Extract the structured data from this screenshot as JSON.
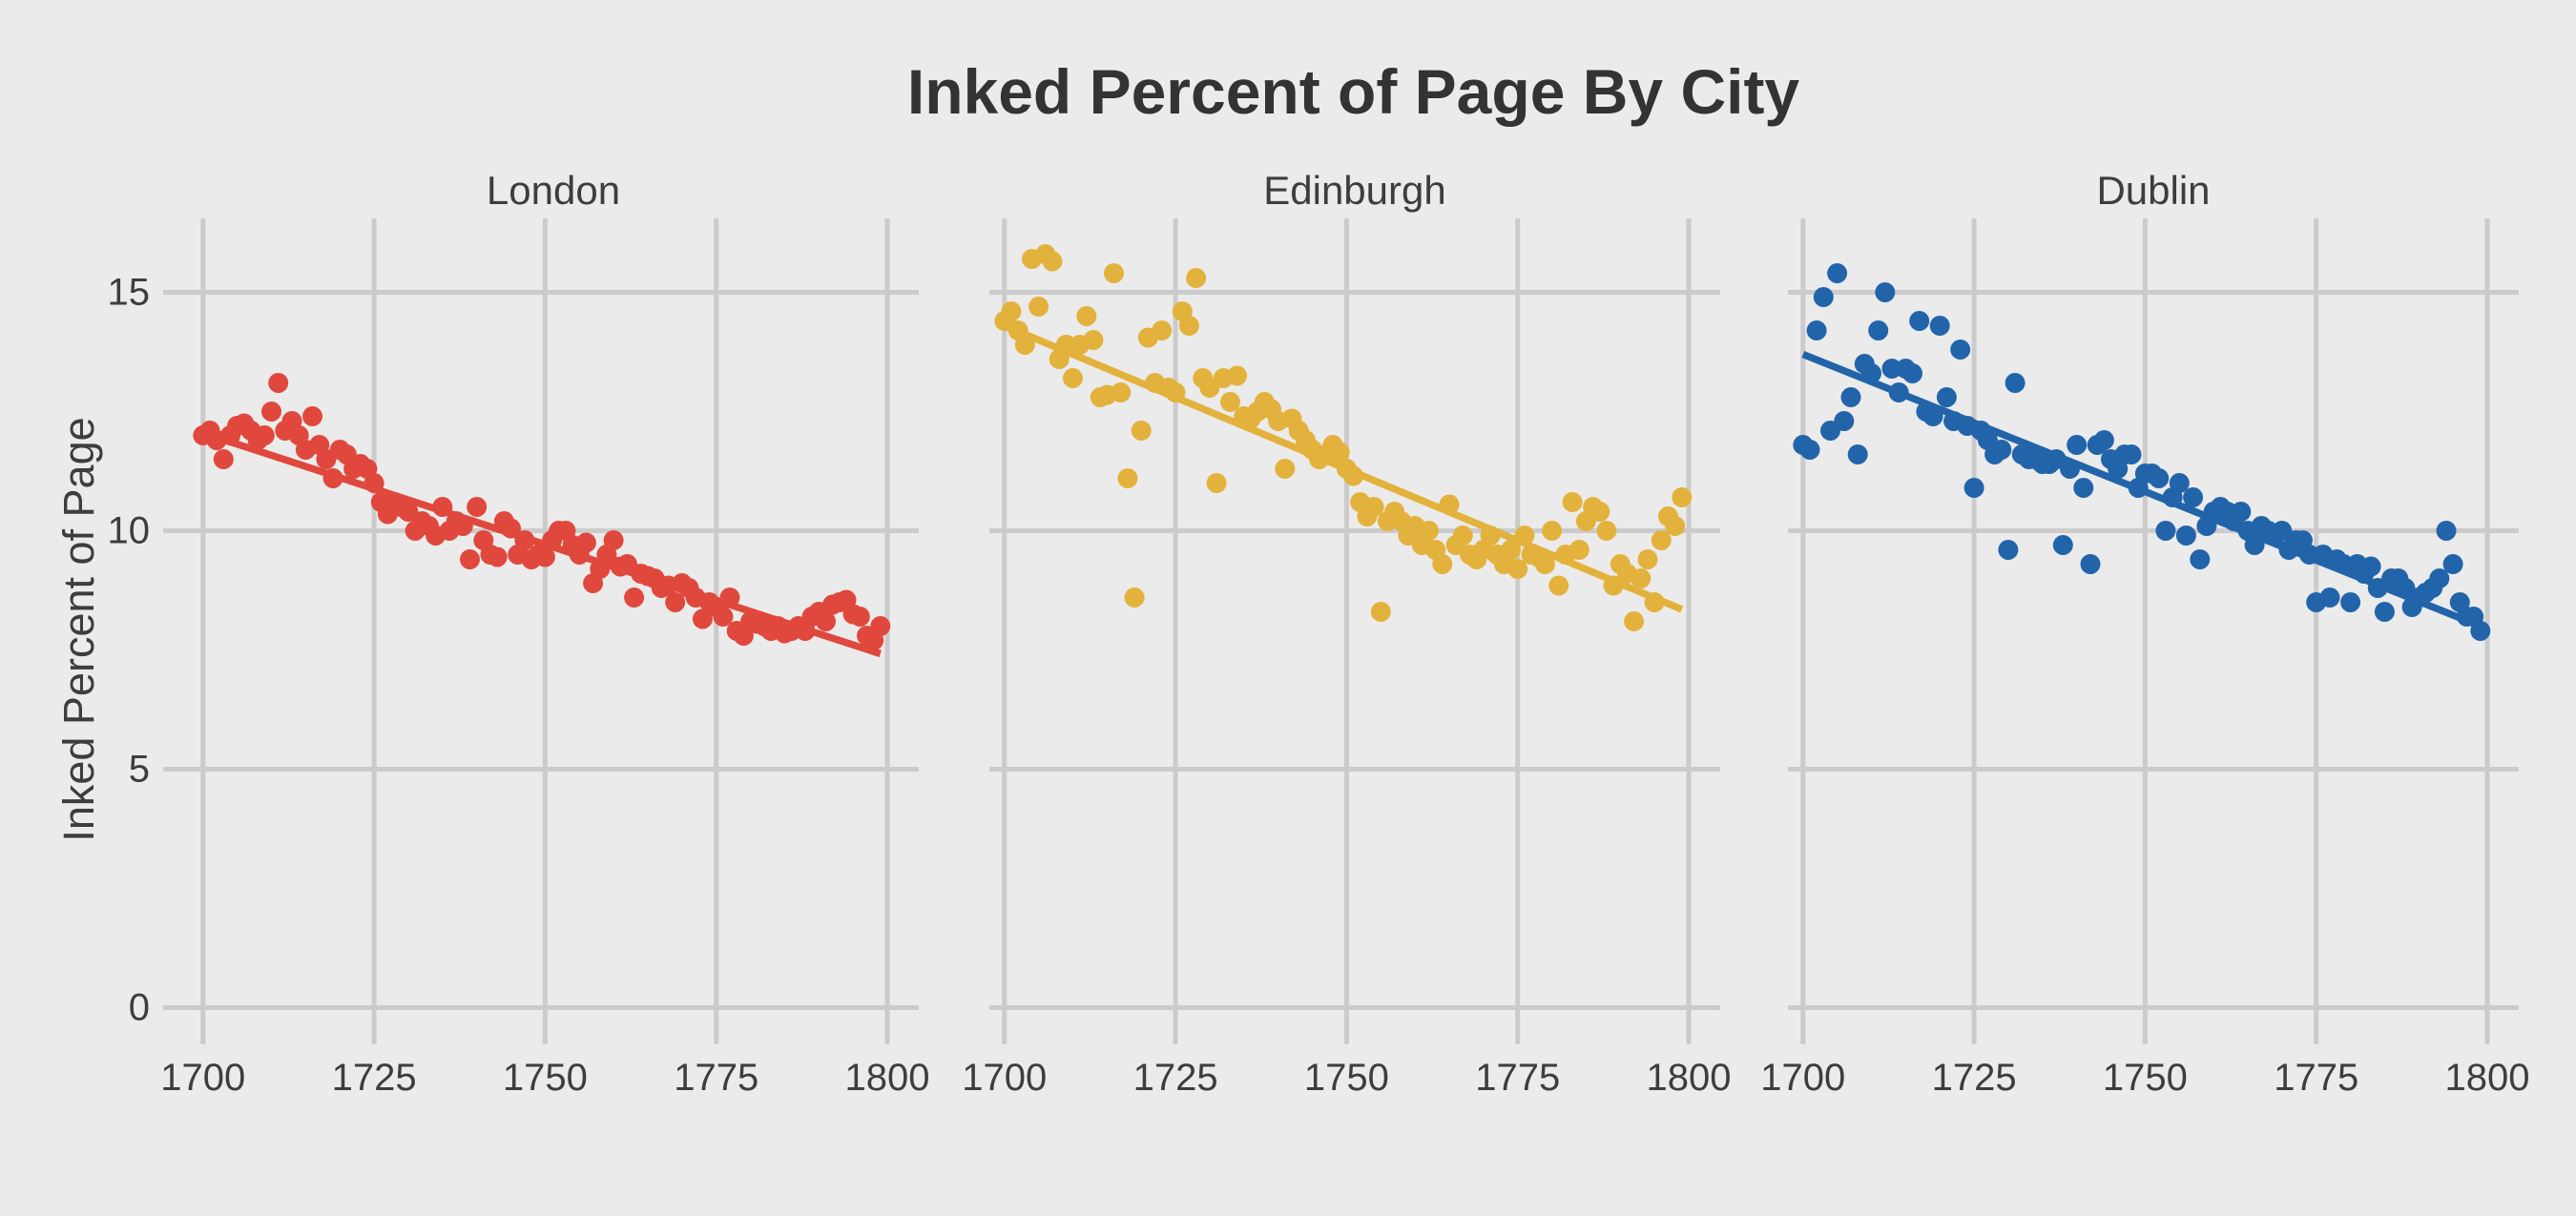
{
  "title": "Inked Percent of Page By City",
  "colors": {
    "background": "#EBEBEB",
    "gridline": "#CBCBCB",
    "title_text": "#333333",
    "axis_text": "#3D3D3D",
    "london": "#E0483D",
    "edinburgh": "#E3B23C",
    "dublin": "#2264AA"
  },
  "chart_data": {
    "type": "scatter",
    "title": "Inked Percent of Page By City",
    "xlabel": "",
    "ylabel": "Inked Percent of Page",
    "x_ticks": [
      1700,
      1725,
      1750,
      1775,
      1800
    ],
    "y_ticks": [
      0,
      5,
      10,
      15
    ],
    "xlim": [
      1697.8,
      1804.6
    ],
    "ylim": [
      -0.25,
      16.55
    ],
    "grid": true,
    "legend": "none",
    "facets": [
      {
        "label": "London",
        "color": "#E0483D",
        "trend": {
          "x1": 1700,
          "y1": 12.05,
          "x2": 1799,
          "y2": 7.42
        },
        "points": [
          [
            1700,
            12.0
          ],
          [
            1701,
            12.1
          ],
          [
            1702,
            11.9
          ],
          [
            1703,
            11.5
          ],
          [
            1704,
            12.0
          ],
          [
            1705,
            12.2
          ],
          [
            1706,
            12.25
          ],
          [
            1707,
            12.1
          ],
          [
            1708,
            11.9
          ],
          [
            1709,
            12.0
          ],
          [
            1710,
            12.5
          ],
          [
            1711,
            13.1
          ],
          [
            1712,
            12.1
          ],
          [
            1713,
            12.3
          ],
          [
            1714,
            12.0
          ],
          [
            1715,
            11.7
          ],
          [
            1716,
            12.4
          ],
          [
            1717,
            11.8
          ],
          [
            1718,
            11.5
          ],
          [
            1719,
            11.1
          ],
          [
            1720,
            11.7
          ],
          [
            1721,
            11.6
          ],
          [
            1722,
            11.3
          ],
          [
            1723,
            11.4
          ],
          [
            1724,
            11.3
          ],
          [
            1725,
            11.0
          ],
          [
            1726,
            10.6
          ],
          [
            1727,
            10.35
          ],
          [
            1728,
            10.6
          ],
          [
            1729,
            10.5
          ],
          [
            1730,
            10.4
          ],
          [
            1731,
            10.0
          ],
          [
            1732,
            10.2
          ],
          [
            1733,
            10.1
          ],
          [
            1734,
            9.9
          ],
          [
            1735,
            10.5
          ],
          [
            1736,
            10.0
          ],
          [
            1737,
            10.2
          ],
          [
            1738,
            10.1
          ],
          [
            1739,
            9.4
          ],
          [
            1740,
            10.5
          ],
          [
            1741,
            9.8
          ],
          [
            1742,
            9.5
          ],
          [
            1743,
            9.45
          ],
          [
            1744,
            10.2
          ],
          [
            1745,
            10.05
          ],
          [
            1746,
            9.5
          ],
          [
            1747,
            9.8
          ],
          [
            1748,
            9.4
          ],
          [
            1749,
            9.5
          ],
          [
            1750,
            9.45
          ],
          [
            1751,
            9.8
          ],
          [
            1752,
            10.0
          ],
          [
            1753,
            10.0
          ],
          [
            1754,
            9.7
          ],
          [
            1755,
            9.5
          ],
          [
            1756,
            9.75
          ],
          [
            1757,
            8.9
          ],
          [
            1758,
            9.2
          ],
          [
            1759,
            9.5
          ],
          [
            1760,
            9.8
          ],
          [
            1761,
            9.25
          ],
          [
            1762,
            9.3
          ],
          [
            1763,
            8.6
          ],
          [
            1764,
            9.1
          ],
          [
            1765,
            9.05
          ],
          [
            1766,
            9.0
          ],
          [
            1767,
            8.8
          ],
          [
            1768,
            8.85
          ],
          [
            1769,
            8.5
          ],
          [
            1770,
            8.9
          ],
          [
            1771,
            8.8
          ],
          [
            1772,
            8.6
          ],
          [
            1773,
            8.15
          ],
          [
            1774,
            8.5
          ],
          [
            1775,
            8.4
          ],
          [
            1776,
            8.2
          ],
          [
            1777,
            8.6
          ],
          [
            1778,
            7.9
          ],
          [
            1779,
            7.8
          ],
          [
            1780,
            8.1
          ],
          [
            1781,
            8.05
          ],
          [
            1782,
            8.0
          ],
          [
            1783,
            7.9
          ],
          [
            1784,
            8.0
          ],
          [
            1785,
            7.85
          ],
          [
            1786,
            7.9
          ],
          [
            1787,
            8.0
          ],
          [
            1788,
            7.9
          ],
          [
            1789,
            8.2
          ],
          [
            1790,
            8.3
          ],
          [
            1791,
            8.1
          ],
          [
            1792,
            8.45
          ],
          [
            1793,
            8.5
          ],
          [
            1794,
            8.55
          ],
          [
            1795,
            8.25
          ],
          [
            1796,
            8.2
          ],
          [
            1797,
            7.8
          ],
          [
            1798,
            7.7
          ],
          [
            1799,
            8.0
          ]
        ]
      },
      {
        "label": "Edinburgh",
        "color": "#E3B23C",
        "trend": {
          "x1": 1700,
          "y1": 14.3,
          "x2": 1799,
          "y2": 8.35
        },
        "points": [
          [
            1700,
            14.4
          ],
          [
            1701,
            14.6
          ],
          [
            1702,
            14.2
          ],
          [
            1703,
            13.9
          ],
          [
            1704,
            15.7
          ],
          [
            1705,
            14.7
          ],
          [
            1706,
            15.8
          ],
          [
            1707,
            15.65
          ],
          [
            1708,
            13.6
          ],
          [
            1709,
            13.9
          ],
          [
            1710,
            13.2
          ],
          [
            1711,
            13.9
          ],
          [
            1712,
            14.5
          ],
          [
            1713,
            14.0
          ],
          [
            1714,
            12.8
          ],
          [
            1715,
            12.85
          ],
          [
            1716,
            15.4
          ],
          [
            1717,
            12.9
          ],
          [
            1718,
            11.1
          ],
          [
            1719,
            8.6
          ],
          [
            1720,
            12.1
          ],
          [
            1721,
            14.05
          ],
          [
            1722,
            13.1
          ],
          [
            1723,
            14.2
          ],
          [
            1724,
            13.0
          ],
          [
            1725,
            12.9
          ],
          [
            1726,
            14.6
          ],
          [
            1727,
            14.3
          ],
          [
            1728,
            15.3
          ],
          [
            1729,
            13.2
          ],
          [
            1730,
            13.0
          ],
          [
            1731,
            11.0
          ],
          [
            1732,
            13.2
          ],
          [
            1733,
            12.7
          ],
          [
            1734,
            13.25
          ],
          [
            1735,
            12.4
          ],
          [
            1736,
            12.35
          ],
          [
            1737,
            12.5
          ],
          [
            1738,
            12.7
          ],
          [
            1739,
            12.55
          ],
          [
            1740,
            12.3
          ],
          [
            1741,
            11.3
          ],
          [
            1742,
            12.35
          ],
          [
            1743,
            12.1
          ],
          [
            1744,
            11.9
          ],
          [
            1745,
            11.7
          ],
          [
            1746,
            11.5
          ],
          [
            1747,
            11.6
          ],
          [
            1748,
            11.8
          ],
          [
            1749,
            11.65
          ],
          [
            1750,
            11.3
          ],
          [
            1751,
            11.15
          ],
          [
            1752,
            10.6
          ],
          [
            1753,
            10.3
          ],
          [
            1754,
            10.5
          ],
          [
            1755,
            8.3
          ],
          [
            1756,
            10.2
          ],
          [
            1757,
            10.4
          ],
          [
            1758,
            10.2
          ],
          [
            1759,
            9.9
          ],
          [
            1760,
            10.1
          ],
          [
            1761,
            9.7
          ],
          [
            1762,
            10.0
          ],
          [
            1763,
            9.6
          ],
          [
            1764,
            9.3
          ],
          [
            1765,
            10.55
          ],
          [
            1766,
            9.7
          ],
          [
            1767,
            9.9
          ],
          [
            1768,
            9.5
          ],
          [
            1769,
            9.4
          ],
          [
            1770,
            9.6
          ],
          [
            1771,
            9.9
          ],
          [
            1772,
            9.5
          ],
          [
            1773,
            9.3
          ],
          [
            1774,
            9.6
          ],
          [
            1775,
            9.2
          ],
          [
            1776,
            9.9
          ],
          [
            1777,
            9.5
          ],
          [
            1778,
            9.45
          ],
          [
            1779,
            9.3
          ],
          [
            1780,
            10.0
          ],
          [
            1781,
            8.85
          ],
          [
            1782,
            9.5
          ],
          [
            1783,
            10.6
          ],
          [
            1784,
            9.6
          ],
          [
            1785,
            10.2
          ],
          [
            1786,
            10.5
          ],
          [
            1787,
            10.4
          ],
          [
            1788,
            10.0
          ],
          [
            1789,
            8.85
          ],
          [
            1790,
            9.3
          ],
          [
            1791,
            9.1
          ],
          [
            1792,
            8.1
          ],
          [
            1793,
            9.0
          ],
          [
            1794,
            9.4
          ],
          [
            1795,
            8.5
          ],
          [
            1796,
            9.8
          ],
          [
            1797,
            10.3
          ],
          [
            1798,
            10.1
          ],
          [
            1799,
            10.7
          ]
        ]
      },
      {
        "label": "Dublin",
        "color": "#2264AA",
        "trend": {
          "x1": 1700,
          "y1": 13.7,
          "x2": 1799,
          "y2": 8.0
        },
        "points": [
          [
            1700,
            11.8
          ],
          [
            1701,
            11.7
          ],
          [
            1702,
            14.2
          ],
          [
            1703,
            14.9
          ],
          [
            1704,
            12.1
          ],
          [
            1705,
            15.4
          ],
          [
            1706,
            12.3
          ],
          [
            1707,
            12.8
          ],
          [
            1708,
            11.6
          ],
          [
            1709,
            13.5
          ],
          [
            1710,
            13.3
          ],
          [
            1711,
            14.2
          ],
          [
            1712,
            15.0
          ],
          [
            1713,
            13.4
          ],
          [
            1714,
            12.9
          ],
          [
            1715,
            13.4
          ],
          [
            1716,
            13.3
          ],
          [
            1717,
            14.4
          ],
          [
            1718,
            12.5
          ],
          [
            1719,
            12.4
          ],
          [
            1720,
            14.3
          ],
          [
            1721,
            12.8
          ],
          [
            1722,
            12.3
          ],
          [
            1723,
            13.8
          ],
          [
            1724,
            12.2
          ],
          [
            1725,
            10.9
          ],
          [
            1726,
            12.1
          ],
          [
            1727,
            11.9
          ],
          [
            1728,
            11.6
          ],
          [
            1729,
            11.7
          ],
          [
            1730,
            9.6
          ],
          [
            1731,
            13.1
          ],
          [
            1732,
            11.6
          ],
          [
            1733,
            11.5
          ],
          [
            1734,
            11.5
          ],
          [
            1735,
            11.4
          ],
          [
            1736,
            11.4
          ],
          [
            1737,
            11.5
          ],
          [
            1738,
            9.7
          ],
          [
            1739,
            11.3
          ],
          [
            1740,
            11.8
          ],
          [
            1741,
            10.9
          ],
          [
            1742,
            9.3
          ],
          [
            1743,
            11.8
          ],
          [
            1744,
            11.9
          ],
          [
            1745,
            11.5
          ],
          [
            1746,
            11.3
          ],
          [
            1747,
            11.6
          ],
          [
            1748,
            11.6
          ],
          [
            1749,
            10.9
          ],
          [
            1750,
            11.2
          ],
          [
            1751,
            11.2
          ],
          [
            1752,
            11.1
          ],
          [
            1753,
            10.0
          ],
          [
            1754,
            10.7
          ],
          [
            1755,
            11.0
          ],
          [
            1756,
            9.9
          ],
          [
            1757,
            10.7
          ],
          [
            1758,
            9.4
          ],
          [
            1759,
            10.1
          ],
          [
            1760,
            10.4
          ],
          [
            1761,
            10.5
          ],
          [
            1762,
            10.4
          ],
          [
            1763,
            10.2
          ],
          [
            1764,
            10.4
          ],
          [
            1765,
            10.0
          ],
          [
            1766,
            9.7
          ],
          [
            1767,
            10.1
          ],
          [
            1768,
            10.0
          ],
          [
            1769,
            9.9
          ],
          [
            1770,
            10.0
          ],
          [
            1771,
            9.6
          ],
          [
            1772,
            9.8
          ],
          [
            1773,
            9.8
          ],
          [
            1774,
            9.5
          ],
          [
            1775,
            8.5
          ],
          [
            1776,
            9.5
          ],
          [
            1777,
            8.6
          ],
          [
            1778,
            9.4
          ],
          [
            1779,
            9.3
          ],
          [
            1780,
            8.5
          ],
          [
            1781,
            9.3
          ],
          [
            1782,
            9.1
          ],
          [
            1783,
            9.25
          ],
          [
            1784,
            8.8
          ],
          [
            1785,
            8.3
          ],
          [
            1786,
            9.0
          ],
          [
            1787,
            9.0
          ],
          [
            1788,
            8.8
          ],
          [
            1789,
            8.4
          ],
          [
            1790,
            8.6
          ],
          [
            1791,
            8.7
          ],
          [
            1792,
            8.8
          ],
          [
            1793,
            9.0
          ],
          [
            1794,
            10.0
          ],
          [
            1795,
            9.3
          ],
          [
            1796,
            8.5
          ],
          [
            1797,
            8.2
          ],
          [
            1798,
            8.2
          ],
          [
            1799,
            7.9
          ]
        ]
      }
    ]
  }
}
